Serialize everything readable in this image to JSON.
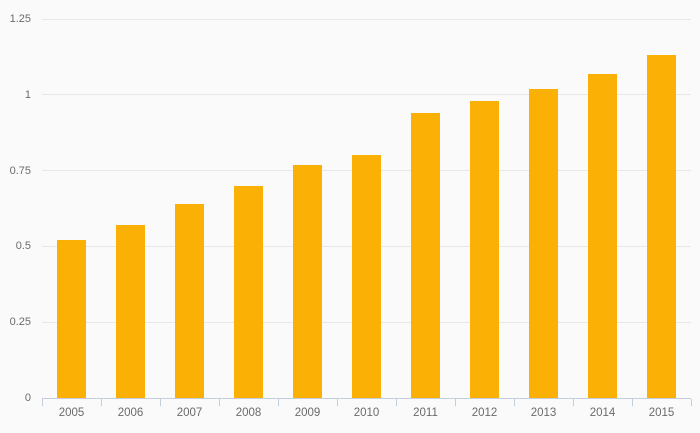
{
  "chart_data": {
    "type": "bar",
    "title": "",
    "xlabel": "",
    "ylabel": "",
    "categories": [
      "2005",
      "2006",
      "2007",
      "2008",
      "2009",
      "2010",
      "2011",
      "2012",
      "2013",
      "2014",
      "2015"
    ],
    "values": [
      0.52,
      0.57,
      0.64,
      0.7,
      0.77,
      0.8,
      0.94,
      0.98,
      1.02,
      1.07,
      1.13
    ],
    "ylim": [
      0,
      1.25
    ],
    "y_tick_labels": [
      "0",
      "0.25",
      "0.5",
      "0.75",
      "1",
      "1.25"
    ],
    "y_tick_values": [
      0,
      0.25,
      0.5,
      0.75,
      1,
      1.25
    ],
    "grid": true,
    "legend": false,
    "colors": {
      "bar": "#fab005",
      "background": "#fafafa",
      "gridline": "#e8e8e8",
      "axis": "#c3cdde",
      "label_text": "#6b6b6b"
    }
  }
}
